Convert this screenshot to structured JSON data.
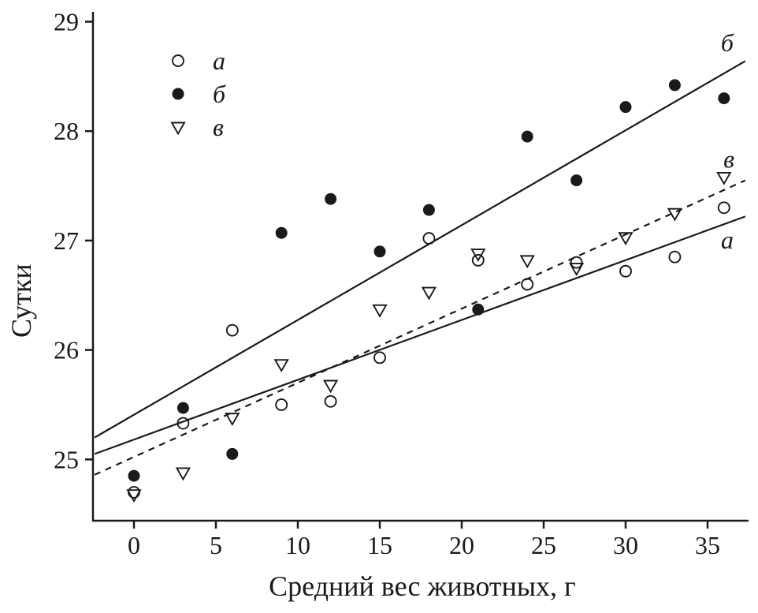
{
  "figure": {
    "background": "#ffffff",
    "ink_color": "#1a1a1a"
  },
  "chart_data": {
    "type": "scatter",
    "title": "",
    "xlabel": "Средний вес животных, г",
    "ylabel": "Сутки",
    "grid": false,
    "xlim": [
      -2.5,
      37.5
    ],
    "ylim": [
      24.44,
      29.09
    ],
    "xticks": [
      0,
      5,
      10,
      15,
      20,
      25,
      30,
      35
    ],
    "yticks": [
      25,
      26,
      27,
      28,
      29
    ],
    "x": [
      0,
      3,
      6,
      9,
      12,
      15,
      18,
      21,
      24,
      27,
      30,
      33,
      36
    ],
    "series": [
      {
        "name": "а",
        "marker": "open-circle",
        "values": [
          24.7,
          25.33,
          26.18,
          25.5,
          25.53,
          25.93,
          27.02,
          26.82,
          26.6,
          26.8,
          26.72,
          26.85,
          27.3
        ],
        "trend": {
          "style": "solid",
          "x1": -2.4,
          "y1": 25.05,
          "x2": 37.3,
          "y2": 27.22
        },
        "line_label": "а",
        "line_label_x": 36.2,
        "line_label_y": 27.0
      },
      {
        "name": "б",
        "marker": "filled-circle",
        "values": [
          24.85,
          25.47,
          25.05,
          27.07,
          27.38,
          26.9,
          27.28,
          26.37,
          27.95,
          27.55,
          28.22,
          28.42,
          28.3
        ],
        "trend": {
          "style": "solid",
          "x1": -2.4,
          "y1": 25.2,
          "x2": 37.3,
          "y2": 28.64
        },
        "line_label": "б",
        "line_label_x": 36.2,
        "line_label_y": 28.8
      },
      {
        "name": "в",
        "marker": "open-triangle-down",
        "values": [
          24.68,
          24.88,
          25.38,
          25.87,
          25.68,
          26.37,
          26.53,
          26.88,
          26.82,
          26.75,
          27.03,
          27.25,
          27.58
        ],
        "trend": {
          "style": "dashed",
          "x1": -2.4,
          "y1": 24.86,
          "x2": 37.3,
          "y2": 27.55
        },
        "line_label": "в",
        "line_label_x": 36.3,
        "line_label_y": 27.74
      }
    ],
    "legend": {
      "position": "top-left",
      "items": [
        {
          "label": "а",
          "marker": "open-circle"
        },
        {
          "label": "б",
          "marker": "filled-circle"
        },
        {
          "label": "в",
          "marker": "open-triangle-down"
        }
      ]
    }
  }
}
